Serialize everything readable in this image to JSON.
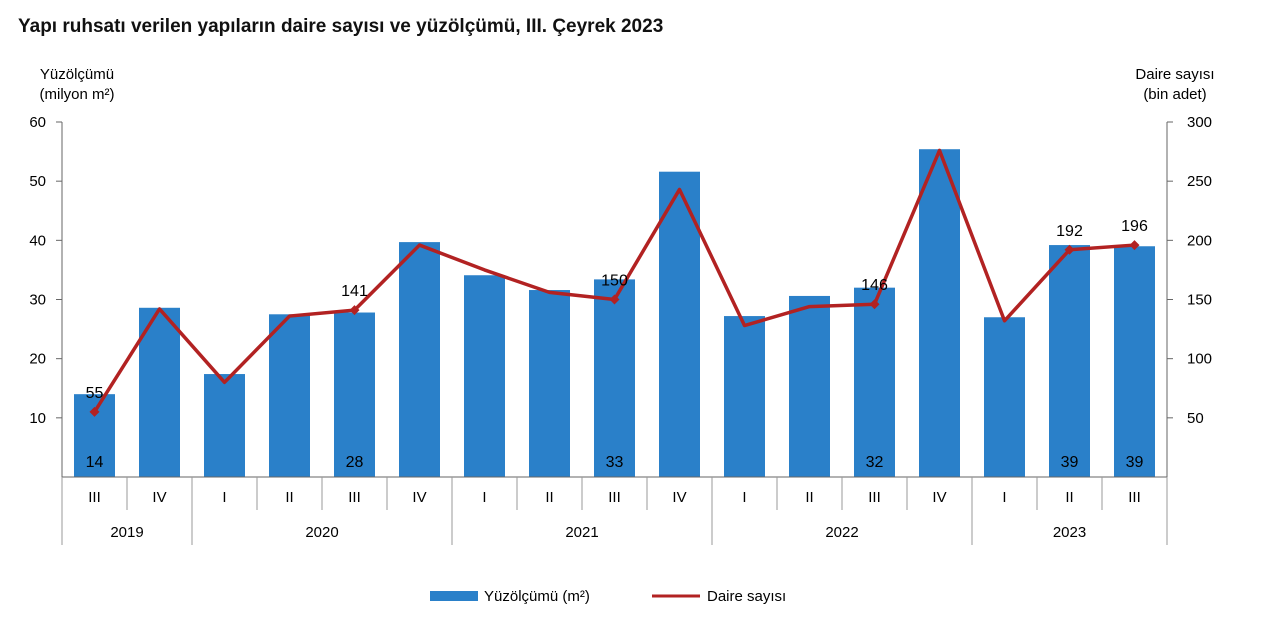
{
  "chart_data": {
    "type": "bar+line",
    "title": "Yapı ruhsatı verilen yapıların daire sayısı ve yüzölçümü, III. Çeyrek 2023",
    "y_left_label": [
      "Yüzölçümü",
      "(milyon m²)"
    ],
    "y_right_label": [
      "Daire sayısı",
      "(bin adet)"
    ],
    "y_left_ticks": [
      "10",
      "20",
      "30",
      "40",
      "50",
      "60"
    ],
    "y_right_ticks": [
      "50",
      "100",
      "150",
      "200",
      "250",
      "300"
    ],
    "y_left_range": [
      0,
      60
    ],
    "y_right_range": [
      0,
      300
    ],
    "quarters": [
      "III",
      "IV",
      "I",
      "II",
      "III",
      "IV",
      "I",
      "II",
      "III",
      "IV",
      "I",
      "II",
      "III",
      "IV",
      "I",
      "II",
      "III"
    ],
    "years": [
      {
        "label": "2019",
        "count": 2
      },
      {
        "label": "2020",
        "count": 4
      },
      {
        "label": "2021",
        "count": 4
      },
      {
        "label": "2022",
        "count": 4
      },
      {
        "label": "2023",
        "count": 3
      }
    ],
    "series": [
      {
        "name": "Yüzölçümü (m²)",
        "kind": "bar",
        "axis": "left",
        "color": "#2a80c9",
        "values": [
          14,
          28.6,
          17.4,
          27.5,
          27.8,
          39.7,
          34.1,
          31.6,
          33.4,
          51.6,
          27.2,
          30.6,
          32,
          55.4,
          27,
          39.2,
          39
        ],
        "labels": [
          "14",
          "",
          "",
          "",
          "28",
          "",
          "",
          "",
          "33",
          "",
          "",
          "",
          "32",
          "",
          "",
          "39",
          "39"
        ]
      },
      {
        "name": "Daire sayısı",
        "kind": "line",
        "axis": "right",
        "color": "#b22222",
        "values": [
          55,
          142,
          80,
          136,
          141,
          196,
          175,
          156,
          150,
          243,
          128,
          144,
          146,
          276,
          132,
          192,
          196
        ],
        "labels": [
          "55",
          "",
          "",
          "",
          "141",
          "",
          "",
          "",
          "150",
          "",
          "",
          "",
          "146",
          "",
          "",
          "192",
          "196"
        ]
      }
    ],
    "legend_position": "bottom-center",
    "grid": false
  }
}
